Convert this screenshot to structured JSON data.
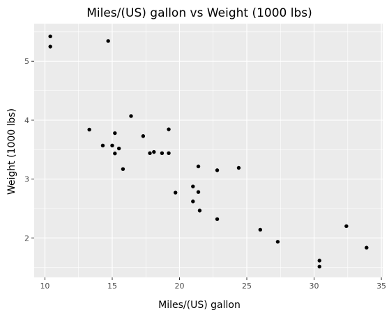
{
  "chart_data": {
    "type": "scatter",
    "title": "Miles/(US) gallon vs Weight (1000 lbs)",
    "xlabel": "Miles/(US) gallon",
    "ylabel": "Weight (1000 lbs)",
    "xlim": [
      9.2,
      35.1
    ],
    "ylim": [
      1.33,
      5.64
    ],
    "x_ticks": [
      10,
      15,
      20,
      25,
      30,
      35
    ],
    "y_ticks": [
      2,
      3,
      4,
      5
    ],
    "x_tick_labels": [
      "10",
      "15",
      "20",
      "25",
      "30",
      "35"
    ],
    "y_tick_labels": [
      "2",
      "3",
      "4",
      "5"
    ],
    "grid": true,
    "colors": {
      "panel_background": "#ebebeb",
      "grid_major": "#ffffff",
      "point": "#000000",
      "tick_text": "#4d4d4d"
    },
    "points": [
      {
        "x": 21.0,
        "y": 2.62
      },
      {
        "x": 21.0,
        "y": 2.875
      },
      {
        "x": 22.8,
        "y": 2.32
      },
      {
        "x": 21.4,
        "y": 3.215
      },
      {
        "x": 18.7,
        "y": 3.44
      },
      {
        "x": 18.1,
        "y": 3.46
      },
      {
        "x": 14.3,
        "y": 3.57
      },
      {
        "x": 24.4,
        "y": 3.19
      },
      {
        "x": 22.8,
        "y": 3.15
      },
      {
        "x": 19.2,
        "y": 3.44
      },
      {
        "x": 17.8,
        "y": 3.44
      },
      {
        "x": 16.4,
        "y": 4.07
      },
      {
        "x": 17.3,
        "y": 3.73
      },
      {
        "x": 15.2,
        "y": 3.78
      },
      {
        "x": 10.4,
        "y": 5.25
      },
      {
        "x": 10.4,
        "y": 5.424
      },
      {
        "x": 14.7,
        "y": 5.345
      },
      {
        "x": 32.4,
        "y": 2.2
      },
      {
        "x": 30.4,
        "y": 1.615
      },
      {
        "x": 33.9,
        "y": 1.835
      },
      {
        "x": 21.5,
        "y": 2.465
      },
      {
        "x": 15.5,
        "y": 3.52
      },
      {
        "x": 15.2,
        "y": 3.435
      },
      {
        "x": 13.3,
        "y": 3.84
      },
      {
        "x": 19.2,
        "y": 3.845
      },
      {
        "x": 27.3,
        "y": 1.935
      },
      {
        "x": 26.0,
        "y": 2.14
      },
      {
        "x": 30.4,
        "y": 1.513
      },
      {
        "x": 15.8,
        "y": 3.17
      },
      {
        "x": 19.7,
        "y": 2.77
      },
      {
        "x": 15.0,
        "y": 3.57
      },
      {
        "x": 21.4,
        "y": 2.78
      }
    ]
  }
}
